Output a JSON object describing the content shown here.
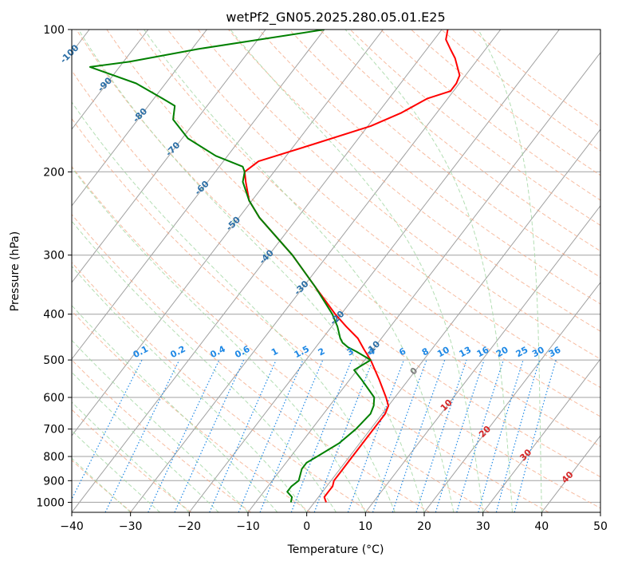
{
  "chart_data": {
    "type": "line",
    "title": "wetPf2_GN05.2025.280.05.01.E25",
    "xlabel": "Temperature (°C)",
    "ylabel": "Pressure (hPa)",
    "xlim": [
      -40,
      50
    ],
    "ylim": [
      1050,
      100
    ],
    "y_scale": "log",
    "grid": true,
    "skew": true,
    "x_ticks": [
      -40,
      -30,
      -20,
      -10,
      0,
      10,
      20,
      30,
      40,
      50
    ],
    "y_ticks": [
      100,
      200,
      300,
      400,
      500,
      600,
      700,
      800,
      900,
      1000
    ],
    "colors": {
      "temperature": "#ff0000",
      "dewpoint": "#008000",
      "isotherm": "#a0a0a0",
      "dry_adiabat": "#f4a582",
      "moist_adiabat": "#a6d8a6",
      "mixing_ratio": "#1e88e5",
      "mixing_label": "#1e88e5",
      "isotherm_label": "#2c6fa6",
      "dry_label": "#d62728"
    },
    "series": [
      {
        "key": "temperature",
        "pressure": [
          1000,
          975,
          950,
          925,
          900,
          850,
          800,
          750,
          700,
          650,
          625,
          600,
          550,
          500,
          475,
          450,
          425,
          400,
          350,
          300,
          250,
          230,
          210,
          200,
          190,
          175,
          160,
          150,
          140,
          135,
          130,
          125,
          115,
          110,
          105,
          100
        ],
        "values": [
          2.0,
          1.0,
          1.0,
          1.0,
          0.5,
          0.5,
          0.5,
          0.5,
          0.5,
          0.5,
          0.0,
          -1.5,
          -5.0,
          -9.0,
          -11.5,
          -14.0,
          -17.5,
          -21.0,
          -28.0,
          -36.0,
          -46.5,
          -50.5,
          -53.5,
          -55.0,
          -54.0,
          -47.0,
          -39.5,
          -36.0,
          -33.5,
          -30.5,
          -30.5,
          -31.0,
          -34.0,
          -36.0,
          -38.0,
          -39.0
        ]
      },
      {
        "key": "dewpoint",
        "pressure": [
          1000,
          975,
          950,
          925,
          900,
          875,
          850,
          825,
          800,
          750,
          700,
          650,
          625,
          600,
          550,
          525,
          500,
          480,
          470,
          460,
          450,
          425,
          400,
          350,
          300,
          250,
          230,
          210,
          200,
          195,
          185,
          170,
          155,
          145,
          140,
          130,
          120,
          117,
          110,
          100
        ],
        "values": [
          -4.0,
          -4.5,
          -6.0,
          -6.0,
          -5.5,
          -6.0,
          -6.5,
          -6.5,
          -5.5,
          -3.5,
          -2.5,
          -2.0,
          -2.5,
          -3.5,
          -8.0,
          -10.5,
          -9.0,
          -12.5,
          -14.5,
          -16.0,
          -17.0,
          -19.0,
          -21.5,
          -28.0,
          -36.0,
          -46.5,
          -50.5,
          -54.0,
          -55.0,
          -56.0,
          -62.0,
          -69.0,
          -74.0,
          -75.5,
          -78.5,
          -85.0,
          -95.0,
          -89.0,
          -79.0,
          -60.0
        ]
      }
    ],
    "isotherm_labels": [
      "-100",
      "-90",
      "-80",
      "-70",
      "-60",
      "-50",
      "-40",
      "-30",
      "-20",
      "-10"
    ],
    "mixing_ratio_labels": [
      "0.1",
      "0.2",
      "0.4",
      "0.6",
      "1",
      "1.5",
      "2",
      "3",
      "4",
      "6",
      "8",
      "10",
      "13",
      "16",
      "20",
      "25",
      "30",
      "36"
    ],
    "dry_adiabat_labels": [
      "0",
      "10",
      "20",
      "30",
      "40"
    ]
  }
}
